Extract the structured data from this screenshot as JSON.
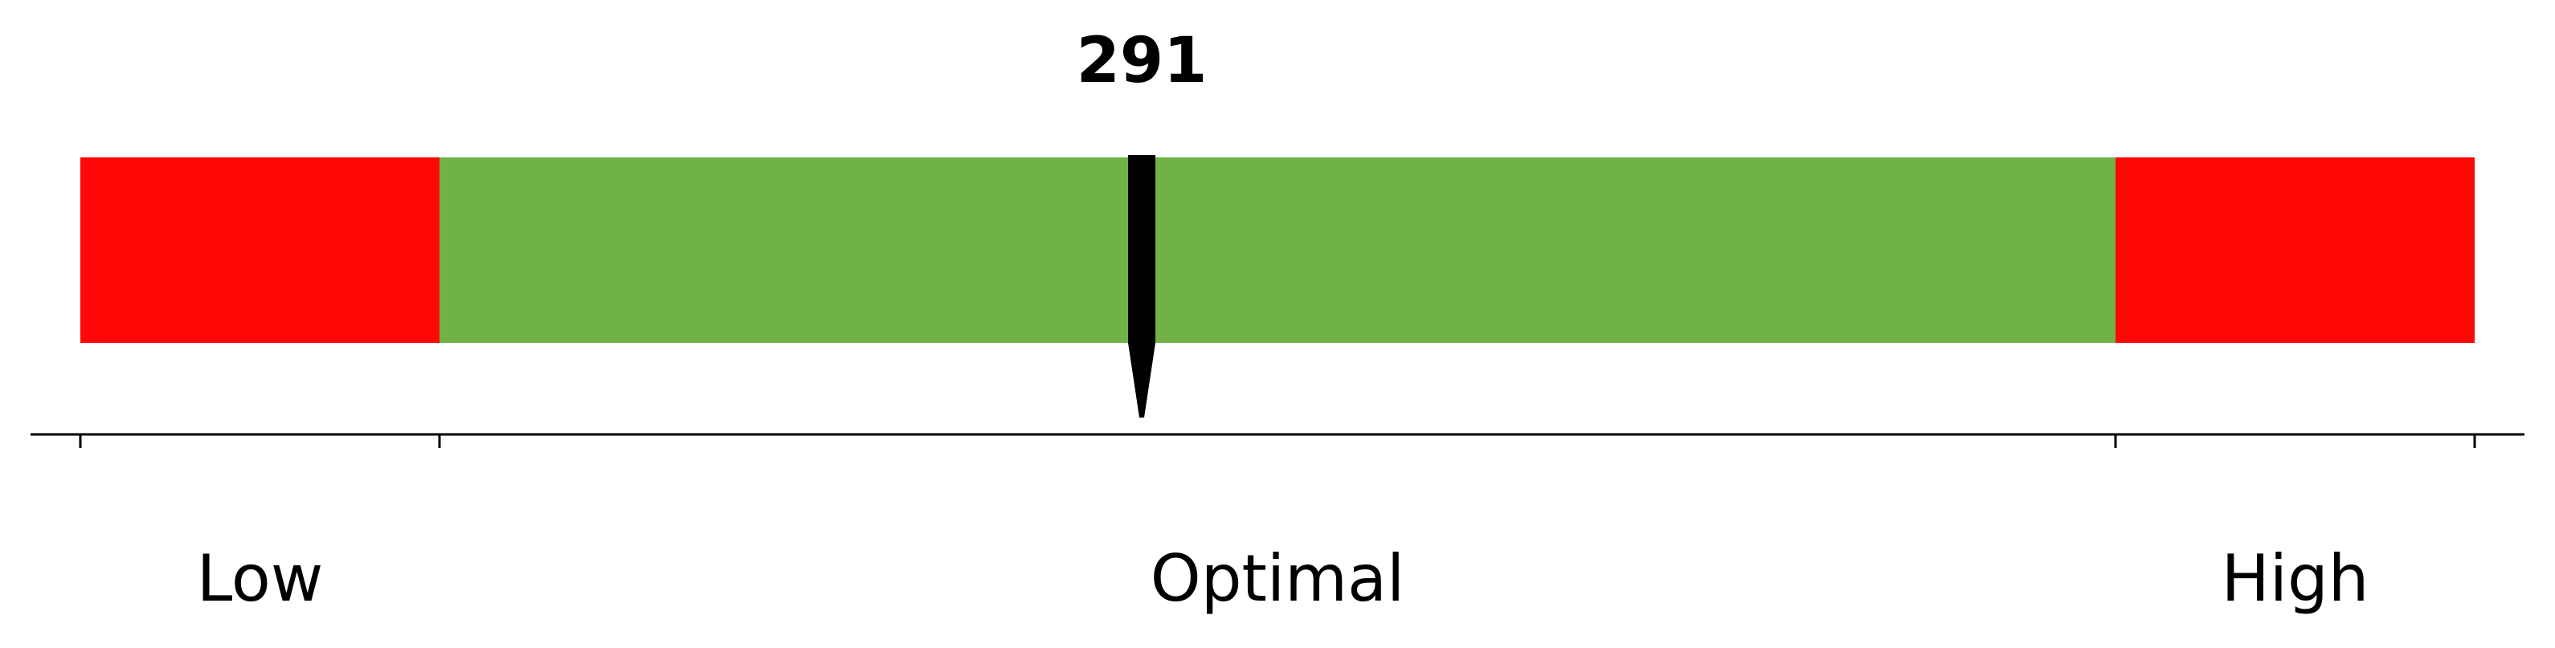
{
  "chart_data": {
    "type": "bar",
    "value": 291,
    "value_label": "291",
    "bands": [
      {
        "name": "Low",
        "from": 0,
        "to": 15,
        "color": "#ff0707"
      },
      {
        "name": "Optimal",
        "from": 15,
        "to": 85,
        "color": "#71b247"
      },
      {
        "name": "High",
        "from": 85,
        "to": 100,
        "color": "#ff0707"
      }
    ],
    "ticks": [
      0,
      15,
      85,
      100
    ],
    "value_position_fraction": 0.4433
  }
}
